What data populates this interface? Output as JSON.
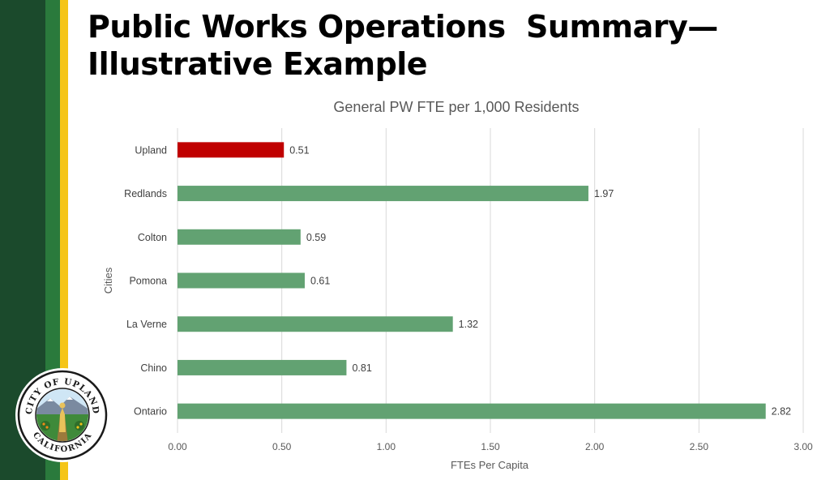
{
  "slide": {
    "title_line1": "Public Works Operations  Summary—",
    "title_line2": "Illustrative Example"
  },
  "seal": {
    "top_text": "CITY OF UPLAND",
    "bottom_text": "CALIFORNIA"
  },
  "colors": {
    "highlight": "#c00000",
    "bar": "#62a272",
    "stripe_dark": "#1b4a2c",
    "stripe_green": "#2a7a3c",
    "stripe_gold": "#f5c518"
  },
  "chart_data": {
    "type": "bar",
    "orientation": "horizontal",
    "title": "General PW FTE per 1,000 Residents",
    "xlabel": "FTEs Per Capita",
    "ylabel": "Cities",
    "categories": [
      "Upland",
      "Redlands",
      "Colton",
      "Pomona",
      "La Verne",
      "Chino",
      "Ontario"
    ],
    "values": [
      0.51,
      1.97,
      0.59,
      0.61,
      1.32,
      0.81,
      2.82
    ],
    "data_labels": [
      "0.51",
      "1.97",
      "0.59",
      "0.61",
      "1.32",
      "0.81",
      "2.82"
    ],
    "highlight_category": "Upland",
    "xlim": [
      0,
      3
    ],
    "xticks": [
      "0.00",
      "0.50",
      "1.00",
      "1.50",
      "2.00",
      "2.50",
      "3.00"
    ],
    "grid": "vertical",
    "legend": "none"
  }
}
